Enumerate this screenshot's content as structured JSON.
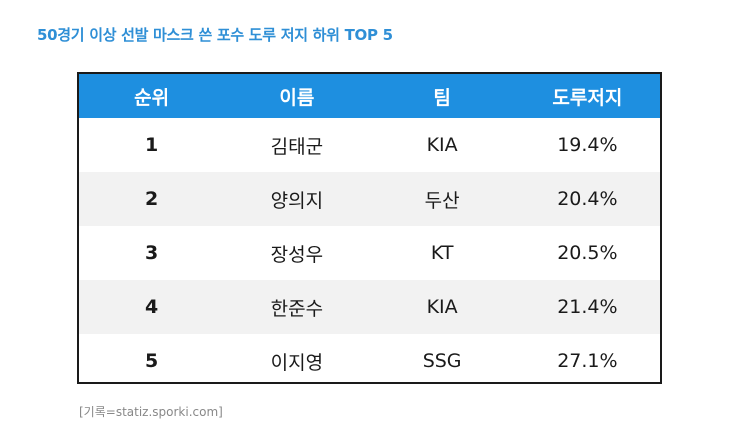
{
  "title": "50경기 이상 선발 마스크 쓴 포수 도루 저지 하위 TOP 5",
  "table": {
    "headers": [
      "순위",
      "이름",
      "팀",
      "도루저지"
    ],
    "rows": [
      {
        "rank": "1",
        "name": "김태군",
        "team": "KIA",
        "rate": "19.4%"
      },
      {
        "rank": "2",
        "name": "양의지",
        "team": "두산",
        "rate": "20.4%"
      },
      {
        "rank": "3",
        "name": "장성우",
        "team": "KT",
        "rate": "20.5%"
      },
      {
        "rank": "4",
        "name": "한준수",
        "team": "KIA",
        "rate": "21.4%"
      },
      {
        "rank": "5",
        "name": "이지영",
        "team": "SSG",
        "rate": "27.1%"
      }
    ]
  },
  "source": "[기록=statiz.sporki.com]",
  "colors": {
    "title": "#2f8fd6",
    "header_bg": "#1e8fe0",
    "header_text": "#ffffff",
    "alt_row_bg": "#f2f2f2",
    "border": "#1a1a1a"
  }
}
